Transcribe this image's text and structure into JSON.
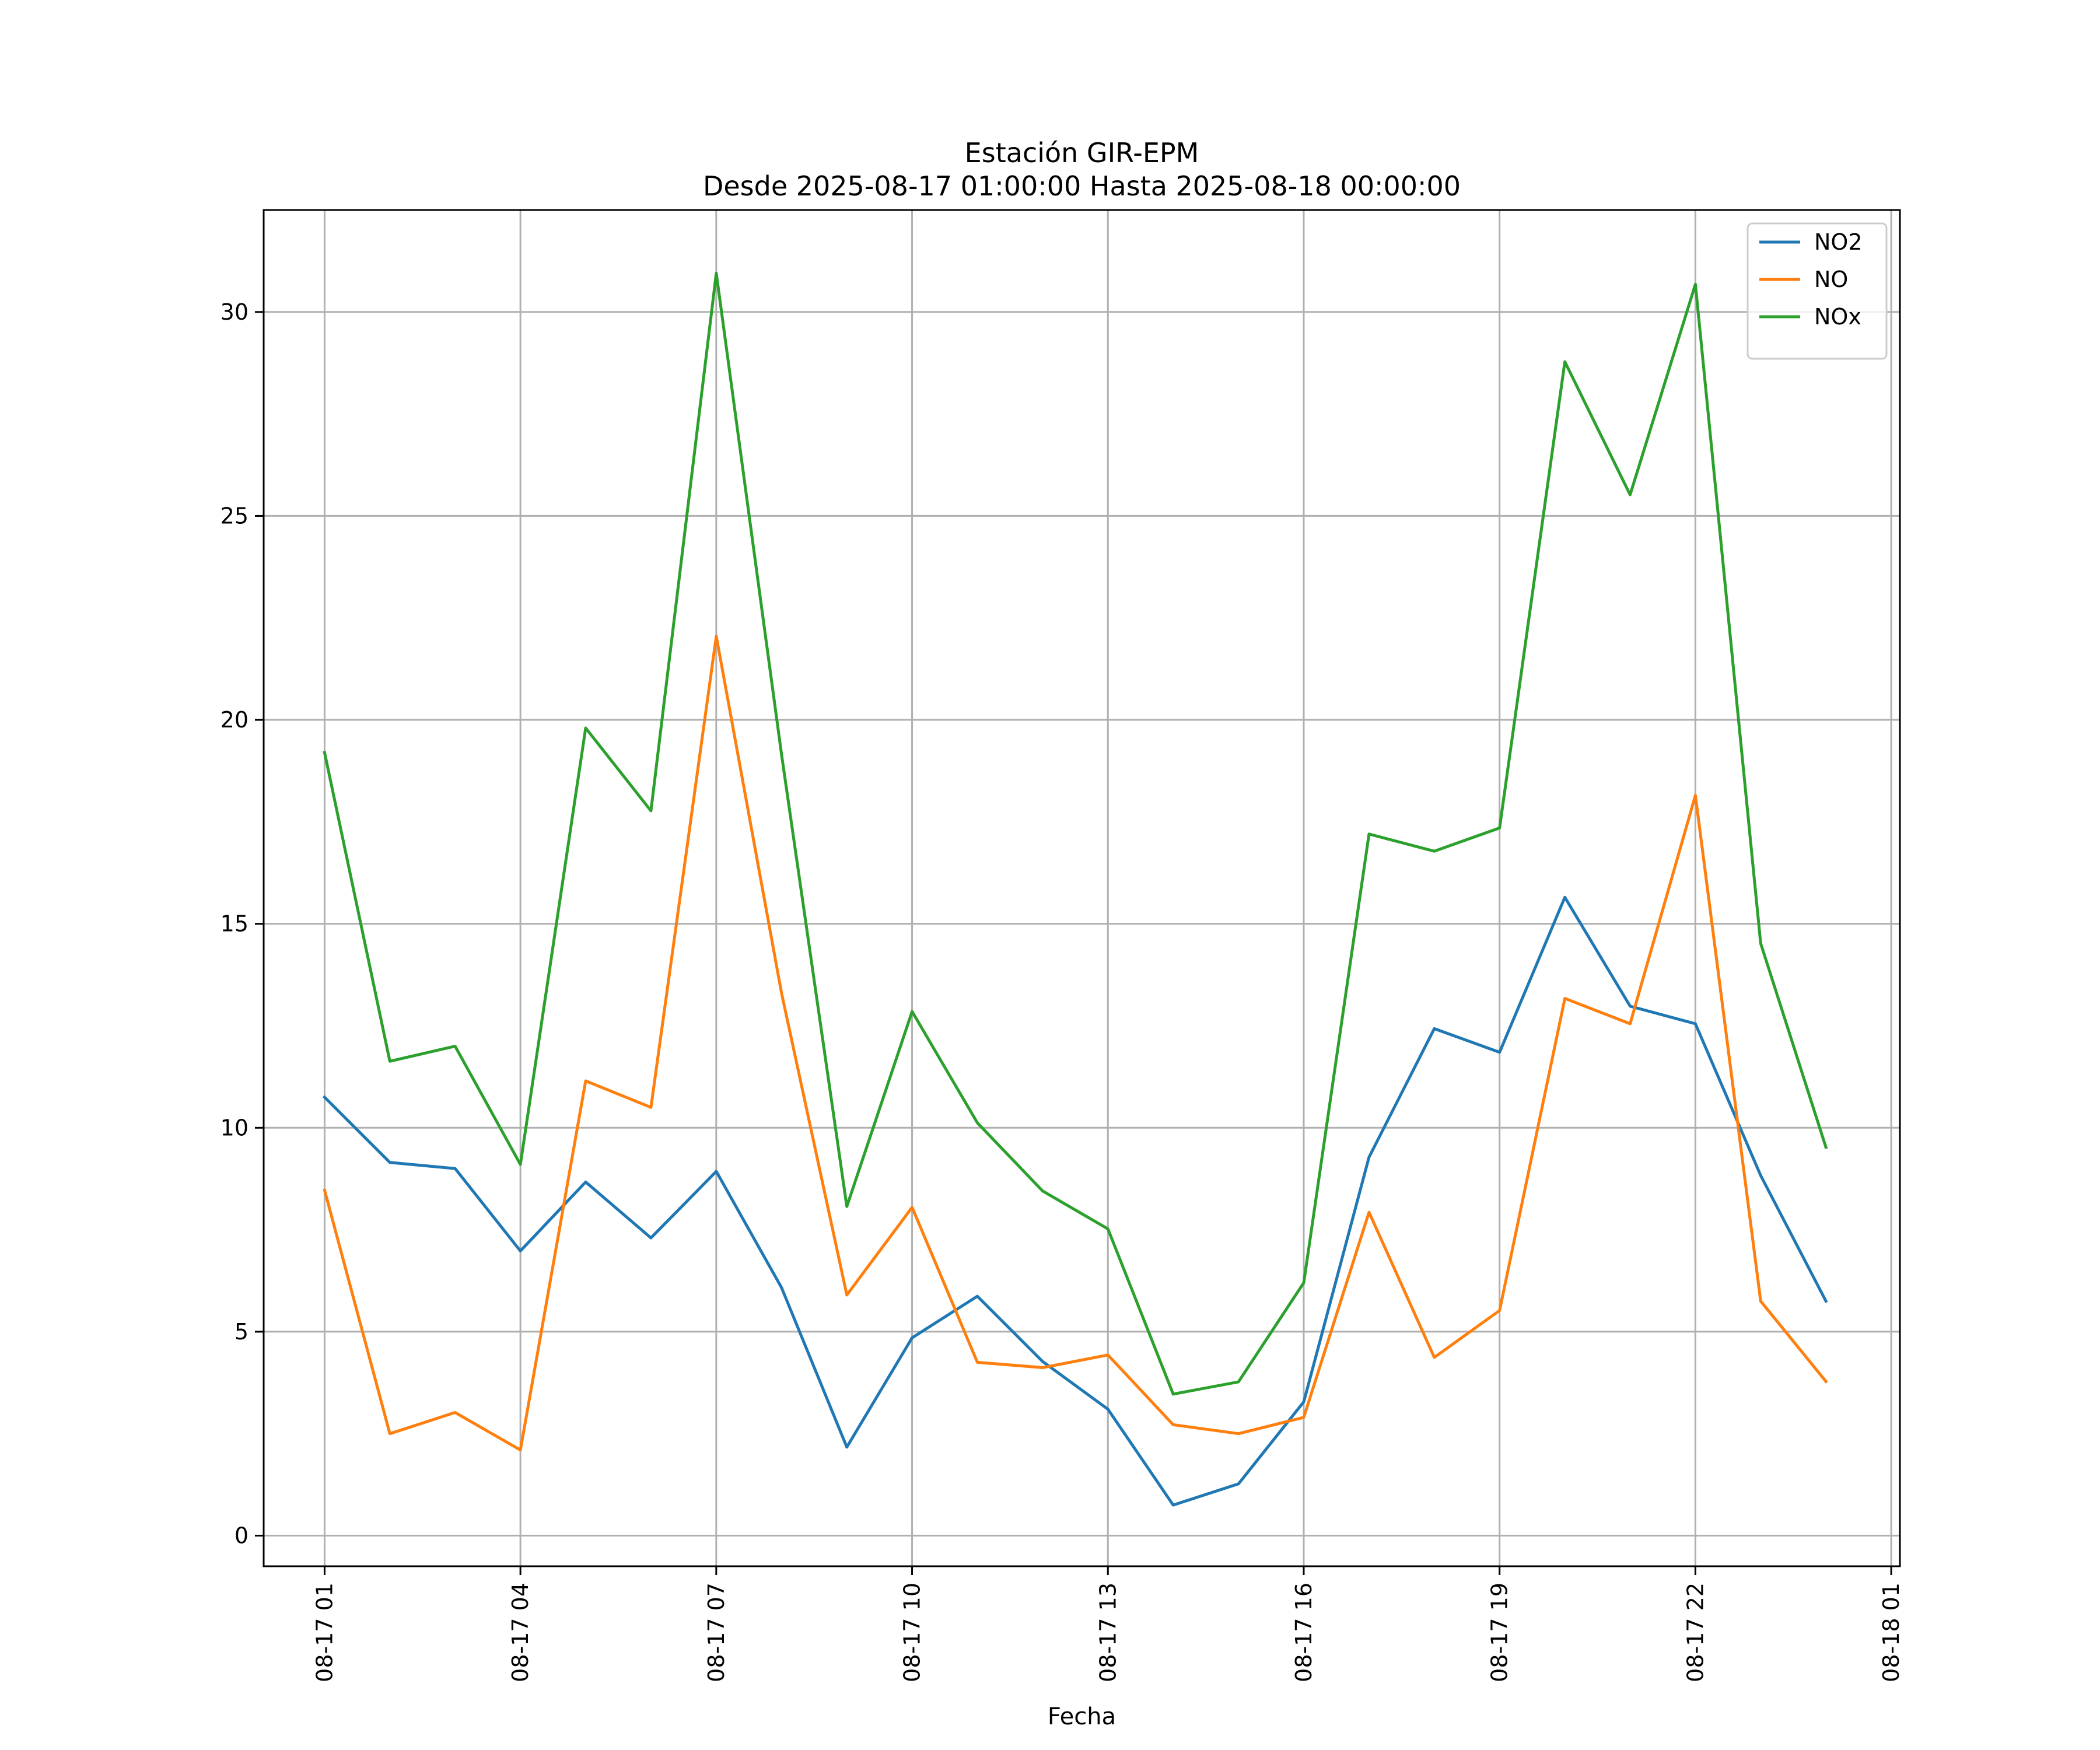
{
  "chart_data": {
    "type": "line",
    "title": "Estación GIR-EPM",
    "subtitle": "Desde 2025-08-17 01:00:00 Hasta 2025-08-18 00:00:00",
    "xlabel": "Fecha",
    "ylabel": "",
    "x": [
      "2025-08-17 01:00",
      "2025-08-17 02:00",
      "2025-08-17 03:00",
      "2025-08-17 04:00",
      "2025-08-17 05:00",
      "2025-08-17 06:00",
      "2025-08-17 07:00",
      "2025-08-17 08:00",
      "2025-08-17 09:00",
      "2025-08-17 10:00",
      "2025-08-17 11:00",
      "2025-08-17 12:00",
      "2025-08-17 13:00",
      "2025-08-17 14:00",
      "2025-08-17 15:00",
      "2025-08-17 16:00",
      "2025-08-17 17:00",
      "2025-08-17 18:00",
      "2025-08-17 19:00",
      "2025-08-17 20:00",
      "2025-08-17 21:00",
      "2025-08-17 22:00",
      "2025-08-17 23:00",
      "2025-08-18 00:00"
    ],
    "xlim": [
      "2025-08-17 00:04",
      "2025-08-18 01:08"
    ],
    "ylim": [
      -0.75,
      32.5
    ],
    "x_ticks": [
      "2025-08-17 01:00",
      "2025-08-17 04:00",
      "2025-08-17 07:00",
      "2025-08-17 10:00",
      "2025-08-17 13:00",
      "2025-08-17 16:00",
      "2025-08-17 19:00",
      "2025-08-17 22:00",
      "2025-08-18 01:00"
    ],
    "x_tick_labels": [
      "08-17 01",
      "08-17 04",
      "08-17 07",
      "08-17 10",
      "08-17 13",
      "08-17 16",
      "08-17 19",
      "08-17 22",
      "08-18 01"
    ],
    "y_ticks": [
      0,
      5,
      10,
      15,
      20,
      25,
      30
    ],
    "y_tick_labels": [
      "0",
      "5",
      "10",
      "15",
      "20",
      "25",
      "30"
    ],
    "grid": true,
    "legend_position": "top-right",
    "series": [
      {
        "name": "NO2",
        "color": "#1f77b4",
        "values": [
          10.75,
          9.15,
          9.0,
          6.98,
          8.67,
          7.3,
          8.93,
          6.08,
          2.17,
          4.85,
          5.87,
          4.27,
          3.1,
          0.75,
          1.27,
          3.28,
          9.28,
          12.43,
          11.85,
          15.65,
          12.98,
          12.55,
          8.83,
          5.75
        ]
      },
      {
        "name": "NO",
        "color": "#ff7f0e",
        "values": [
          8.47,
          2.5,
          3.02,
          2.1,
          11.15,
          10.5,
          22.05,
          13.3,
          5.9,
          8.05,
          4.25,
          4.12,
          4.43,
          2.72,
          2.5,
          2.9,
          7.93,
          4.37,
          5.52,
          13.17,
          12.55,
          18.15,
          5.75,
          3.78
        ]
      },
      {
        "name": "NOx",
        "color": "#2ca02c",
        "values": [
          19.2,
          11.63,
          12.0,
          9.1,
          19.8,
          17.77,
          30.95,
          19.15,
          8.07,
          12.85,
          10.12,
          8.45,
          7.52,
          3.47,
          3.77,
          6.2,
          17.2,
          16.78,
          17.35,
          28.78,
          25.52,
          30.68,
          14.52,
          9.52
        ]
      }
    ]
  }
}
